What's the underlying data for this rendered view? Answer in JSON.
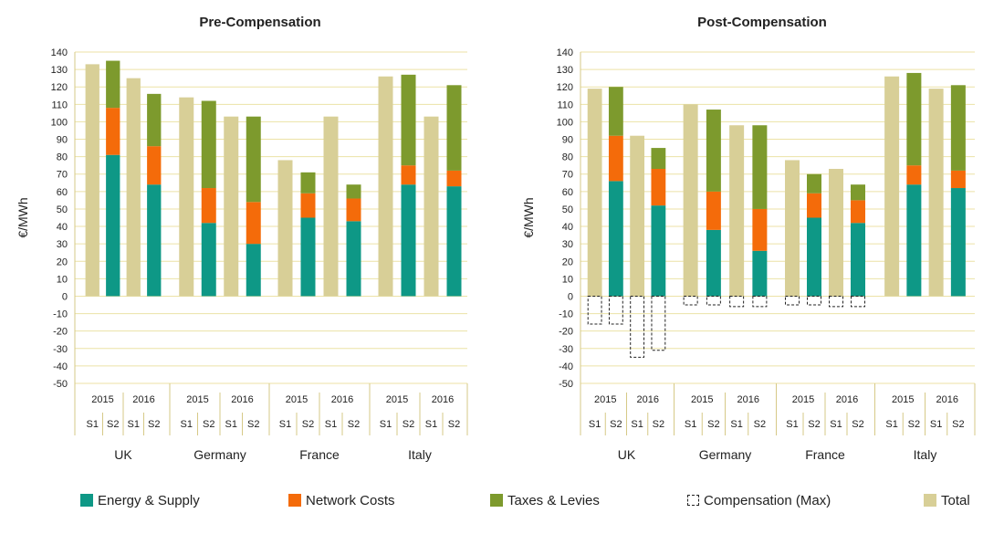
{
  "colors": {
    "energy": "#0e9886",
    "network": "#f46b0a",
    "taxes": "#7d9a2d",
    "total": "#d8cf97",
    "grid": "#ece2a6",
    "axis": "#d6c987",
    "compensation": "#222222"
  },
  "legend": [
    {
      "label": "Energy & Supply",
      "key": "energy"
    },
    {
      "label": "Network Costs",
      "key": "network"
    },
    {
      "label": "Taxes & Levies",
      "key": "taxes"
    },
    {
      "label": "Compensation (Max)",
      "key": "compensation"
    },
    {
      "label": "Total",
      "key": "total"
    }
  ],
  "chart_data": [
    {
      "type": "bar",
      "title": "Pre-Compensation",
      "ylabel": "€/MWh",
      "ylim": [
        -50,
        140
      ],
      "yticks": [
        140,
        130,
        120,
        110,
        100,
        90,
        80,
        70,
        60,
        50,
        40,
        30,
        20,
        10,
        0,
        -10,
        -20,
        -30,
        -40,
        -50
      ],
      "grid": true,
      "countries": [
        {
          "name": "UK",
          "years": [
            "2015",
            "2016"
          ],
          "periods": [
            "S1",
            "S2",
            "S1",
            "S2"
          ],
          "bars": [
            {
              "kind": "total",
              "value": 133
            },
            {
              "kind": "stack",
              "energy": 81,
              "network": 27,
              "taxes": 27
            },
            {
              "kind": "total",
              "value": 125
            },
            {
              "kind": "stack",
              "energy": 64,
              "network": 22,
              "taxes": 30
            }
          ]
        },
        {
          "name": "Germany",
          "years": [
            "2015",
            "2016"
          ],
          "periods": [
            "S1",
            "S2",
            "S1",
            "S2"
          ],
          "bars": [
            {
              "kind": "total",
              "value": 114
            },
            {
              "kind": "stack",
              "energy": 42,
              "network": 20,
              "taxes": 50
            },
            {
              "kind": "total",
              "value": 103
            },
            {
              "kind": "stack",
              "energy": 30,
              "network": 24,
              "taxes": 49
            }
          ]
        },
        {
          "name": "France",
          "years": [
            "2015",
            "2016"
          ],
          "periods": [
            "S1",
            "S2",
            "S1",
            "S2"
          ],
          "bars": [
            {
              "kind": "total",
              "value": 78
            },
            {
              "kind": "stack",
              "energy": 45,
              "network": 14,
              "taxes": 12
            },
            {
              "kind": "total",
              "value": 103
            },
            {
              "kind": "stack",
              "energy": 43,
              "network": 13,
              "taxes": 8
            }
          ]
        },
        {
          "name": "Italy",
          "years": [
            "2015",
            "2016"
          ],
          "periods": [
            "S1",
            "S2",
            "S1",
            "S2"
          ],
          "bars": [
            {
              "kind": "total",
              "value": 126
            },
            {
              "kind": "stack",
              "energy": 64,
              "network": 11,
              "taxes": 52
            },
            {
              "kind": "total",
              "value": 103
            },
            {
              "kind": "stack",
              "energy": 63,
              "network": 9,
              "taxes": 49
            }
          ]
        }
      ]
    },
    {
      "type": "bar",
      "title": "Post-Compensation",
      "ylabel": "€/MWh",
      "ylim": [
        -50,
        140
      ],
      "yticks": [
        140,
        130,
        120,
        110,
        100,
        90,
        80,
        70,
        60,
        50,
        40,
        30,
        20,
        10,
        0,
        -10,
        -20,
        -30,
        -40,
        -50
      ],
      "grid": true,
      "countries": [
        {
          "name": "UK",
          "years": [
            "2015",
            "2016"
          ],
          "periods": [
            "S1",
            "S2",
            "S1",
            "S2"
          ],
          "bars": [
            {
              "kind": "total",
              "value": 119,
              "compensation": -16
            },
            {
              "kind": "stack",
              "energy": 66,
              "network": 26,
              "taxes": 28,
              "compensation": -16
            },
            {
              "kind": "total",
              "value": 92,
              "compensation": -35
            },
            {
              "kind": "stack",
              "energy": 52,
              "network": 21,
              "taxes": 12,
              "compensation": -31
            }
          ]
        },
        {
          "name": "Germany",
          "years": [
            "2015",
            "2016"
          ],
          "periods": [
            "S1",
            "S2",
            "S1",
            "S2"
          ],
          "bars": [
            {
              "kind": "total",
              "value": 110,
              "compensation": -5
            },
            {
              "kind": "stack",
              "energy": 38,
              "network": 22,
              "taxes": 47,
              "compensation": -5
            },
            {
              "kind": "total",
              "value": 98,
              "compensation": -6
            },
            {
              "kind": "stack",
              "energy": 26,
              "network": 24,
              "taxes": 48,
              "compensation": -6
            }
          ]
        },
        {
          "name": "France",
          "years": [
            "2015",
            "2016"
          ],
          "periods": [
            "S1",
            "S2",
            "S1",
            "S2"
          ],
          "bars": [
            {
              "kind": "total",
              "value": 78,
              "compensation": -5
            },
            {
              "kind": "stack",
              "energy": 45,
              "network": 14,
              "taxes": 11,
              "compensation": -5
            },
            {
              "kind": "total",
              "value": 73,
              "compensation": -6
            },
            {
              "kind": "stack",
              "energy": 42,
              "network": 13,
              "taxes": 9,
              "compensation": -6
            }
          ]
        },
        {
          "name": "Italy",
          "years": [
            "2015",
            "2016"
          ],
          "periods": [
            "S1",
            "S2",
            "S1",
            "S2"
          ],
          "bars": [
            {
              "kind": "total",
              "value": 126
            },
            {
              "kind": "stack",
              "energy": 64,
              "network": 11,
              "taxes": 53
            },
            {
              "kind": "total",
              "value": 119
            },
            {
              "kind": "stack",
              "energy": 62,
              "network": 10,
              "taxes": 49
            }
          ]
        }
      ]
    }
  ]
}
